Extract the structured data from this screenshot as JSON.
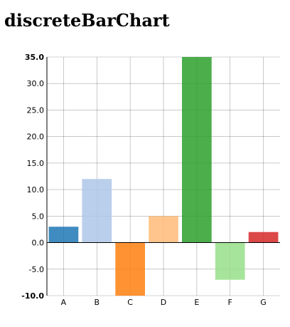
{
  "page": {
    "title": "discreteBarChart"
  },
  "chart_data": {
    "type": "bar",
    "categories": [
      "A",
      "B",
      "C",
      "D",
      "E",
      "F",
      "G"
    ],
    "values": [
      3,
      12,
      -10,
      5,
      35,
      -7,
      2
    ],
    "colors": [
      "#1f77b4",
      "#aec7e8",
      "#ff7f0e",
      "#ffbb78",
      "#2ca02c",
      "#98df8a",
      "#d62728"
    ],
    "ylim": [
      -10,
      35
    ],
    "yticks": [
      -10,
      -5,
      0,
      5,
      10,
      15,
      20,
      25,
      30,
      35
    ],
    "ytick_labels": [
      "-10.0",
      "-5.0",
      "0.0",
      "5.0",
      "10.0",
      "15.0",
      "20.0",
      "25.0",
      "30.0",
      "35.0"
    ],
    "grid": true,
    "title": "",
    "xlabel": "",
    "ylabel": ""
  }
}
